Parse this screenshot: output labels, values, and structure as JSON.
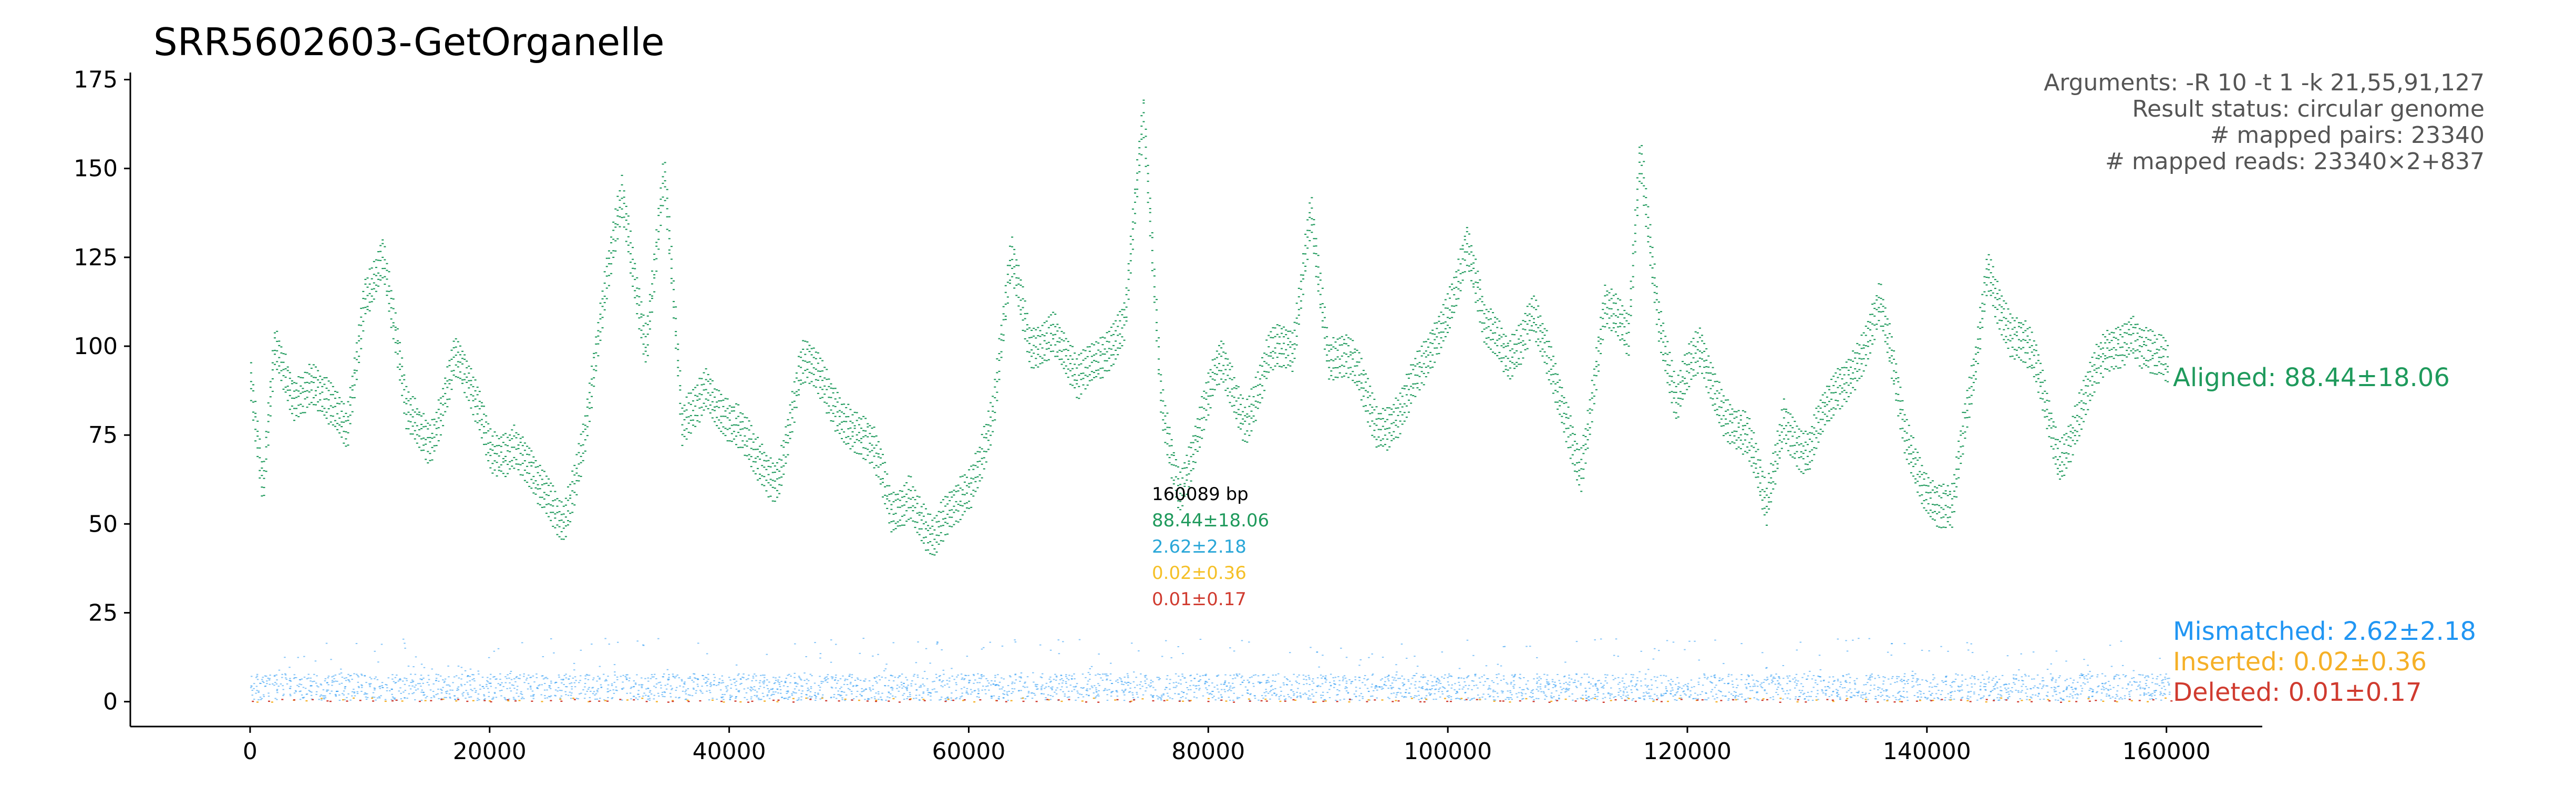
{
  "chart_data": {
    "type": "scatter",
    "title": "SRR5602603-GetOrganelle",
    "xlabel": "",
    "ylabel": "",
    "xlim": [
      -10000,
      168000
    ],
    "ylim": [
      -7,
      177
    ],
    "genome_length": 160089,
    "xticks": [
      0,
      20000,
      40000,
      60000,
      80000,
      100000,
      120000,
      140000,
      160000
    ],
    "yticks": [
      0,
      25,
      50,
      75,
      100,
      125,
      150,
      175
    ],
    "xtick_labels": [
      "0",
      "20000",
      "40000",
      "60000",
      "80000",
      "100000",
      "120000",
      "140000",
      "160000"
    ],
    "ytick_labels": [
      "0",
      "25",
      "50",
      "75",
      "100",
      "125",
      "150",
      "175"
    ],
    "grid": false,
    "info_box": {
      "arguments": "Arguments: -R 10 -t 1 -k 21,55,91,127",
      "status": "Result status: circular genome",
      "pairs": "# mapped pairs: 23340",
      "reads": "# mapped reads: 23340×2+837"
    },
    "center_box": {
      "length": "160089 bp",
      "aligned": "88.44±18.06",
      "mismatched": "2.62±2.18",
      "inserted": "0.02±0.36",
      "deleted": "0.01±0.17"
    },
    "series": [
      {
        "name": "Aligned: 88.44±18.06",
        "color": "#1f9a5c",
        "mean": 88.44,
        "sd": 18.06,
        "x": [
          0,
          1000,
          2000,
          3500,
          5000,
          6500,
          8000,
          9500,
          11000,
          13000,
          15000,
          17000,
          18500,
          20000,
          22000,
          24000,
          26000,
          28000,
          29500,
          31000,
          33000,
          34500,
          36000,
          38000,
          40000,
          42000,
          44000,
          46000,
          48000,
          50000,
          52000,
          53500,
          55000,
          57000,
          58500,
          60000,
          62000,
          63500,
          65000,
          67000,
          69000,
          71000,
          73000,
          74500,
          76000,
          77500,
          79000,
          81000,
          83000,
          85000,
          87000,
          88500,
          90000,
          92000,
          94000,
          96000,
          98000,
          100000,
          101500,
          103000,
          105000,
          107000,
          109000,
          111000,
          113000,
          115000,
          116000,
          117500,
          119000,
          121000,
          123000,
          125000,
          126500,
          128000,
          130000,
          132000,
          134000,
          136000,
          138000,
          140000,
          142000,
          144000,
          145000,
          147000,
          149000,
          151000,
          153000,
          155000,
          157000,
          159000,
          160000
        ],
        "y": [
          90,
          55,
          95,
          85,
          90,
          80,
          75,
          120,
          130,
          80,
          75,
          95,
          80,
          70,
          75,
          60,
          55,
          80,
          110,
          140,
          100,
          145,
          75,
          95,
          80,
          70,
          65,
          90,
          85,
          80,
          70,
          55,
          65,
          45,
          50,
          60,
          80,
          120,
          100,
          110,
          90,
          100,
          110,
          160,
          80,
          60,
          75,
          95,
          85,
          100,
          95,
          140,
          95,
          90,
          80,
          85,
          95,
          115,
          130,
          100,
          95,
          110,
          85,
          70,
          115,
          100,
          155,
          110,
          80,
          95,
          85,
          75,
          55,
          85,
          70,
          80,
          95,
          110,
          75,
          65,
          55,
          95,
          125,
          100,
          90,
          70,
          85,
          100,
          110,
          95,
          90
        ]
      },
      {
        "name": "Mismatched: 2.62±2.18",
        "color": "#2196f3",
        "mean": 2.62,
        "sd": 2.18
      },
      {
        "name": "Inserted: 0.02±0.36",
        "color": "#f5b027",
        "mean": 0.02,
        "sd": 0.36
      },
      {
        "name": "Deleted: 0.01±0.17",
        "color": "#d03b2f",
        "mean": 0.01,
        "sd": 0.17
      }
    ]
  }
}
